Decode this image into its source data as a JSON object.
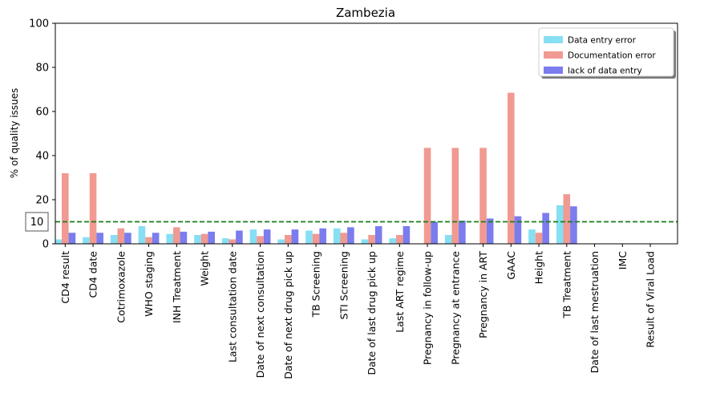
{
  "chart_data": {
    "type": "bar",
    "title": "Zambezia",
    "xlabel": "",
    "ylabel": "% of quality issues",
    "ylim": [
      0,
      100
    ],
    "yticks": [
      0,
      20,
      40,
      60,
      80,
      100
    ],
    "grid": false,
    "legend_position": "top-right",
    "categories": [
      "CD4 result",
      "CD4 date",
      "Cotrimoxazole",
      "WHO staging",
      "INH Treatment",
      "Weight",
      "Last consultation date",
      "Date of next consultation",
      "Date of next drug pick up",
      "TB Screening",
      "STI Screening",
      "Date of last drug pick up",
      "Last ART regime",
      "Pregnancy in follow-up",
      "Pregnancy at entrance",
      "Pregnancy in ART",
      "GAAC",
      "Height",
      "TB Treatment",
      "Date of last mestruation",
      "IMC",
      "Result of Viral Load"
    ],
    "series": [
      {
        "name": "Data entry error",
        "color": "#87dff3",
        "values": [
          2,
          3,
          4,
          8,
          4.5,
          4,
          2.5,
          6.5,
          2,
          6,
          7,
          2,
          2.5,
          0,
          4,
          0,
          0,
          6.5,
          17.5,
          0,
          0,
          0
        ]
      },
      {
        "name": "Documentation error",
        "color": "#f09a92",
        "values": [
          32,
          32,
          7,
          3,
          7.5,
          4.5,
          2,
          3.5,
          4,
          4.5,
          5,
          4,
          4,
          43.5,
          43.5,
          43.5,
          68.5,
          5,
          22.5,
          0,
          0,
          0
        ]
      },
      {
        "name": "lack of data entry",
        "color": "#7b7ced",
        "values": [
          5,
          5,
          5,
          5,
          5.5,
          5.5,
          6,
          6.5,
          6.5,
          7,
          7.5,
          8,
          8,
          10,
          10.5,
          11.5,
          12.5,
          14,
          17,
          0,
          0,
          0
        ]
      }
    ],
    "reference_line": {
      "value": 10,
      "label": "10",
      "color": "#1a7f1a"
    }
  }
}
